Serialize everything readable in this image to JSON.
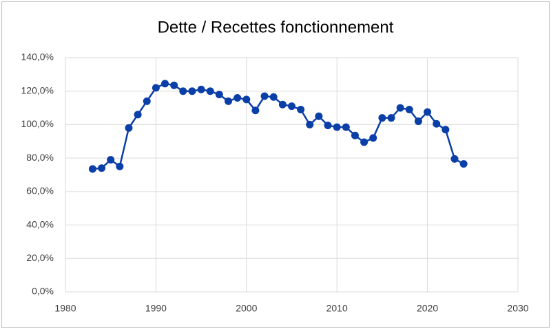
{
  "chart_data": {
    "type": "line",
    "title": "Dette / Recettes fonctionnement",
    "x": [
      1983,
      1984,
      1985,
      1986,
      1987,
      1988,
      1989,
      1990,
      1991,
      1992,
      1993,
      1994,
      1995,
      1996,
      1997,
      1998,
      1999,
      2000,
      2001,
      2002,
      2003,
      2004,
      2005,
      2006,
      2007,
      2008,
      2009,
      2010,
      2011,
      2012,
      2013,
      2014,
      2015,
      2016,
      2017,
      2018,
      2019,
      2020,
      2021,
      2022,
      2023,
      2024
    ],
    "values": [
      73.5,
      74,
      79,
      75,
      98,
      106,
      114,
      122,
      124.5,
      123.5,
      120,
      120,
      121,
      120,
      118,
      114,
      116,
      115,
      108.5,
      117,
      116.5,
      112,
      111,
      109,
      100,
      105,
      99.5,
      98.5,
      98.5,
      93.5,
      89.5,
      92,
      104,
      104,
      110,
      109,
      102,
      107.5,
      100.5,
      97,
      79.5,
      76.5
    ],
    "color": "#0a3fa8",
    "xlim": [
      1980,
      2030
    ],
    "xticks": [
      1980,
      1990,
      2000,
      2010,
      2020,
      2030
    ],
    "ylim": [
      0,
      140
    ],
    "yticks": [
      {
        "value": 0,
        "label": "0,0%"
      },
      {
        "value": 20,
        "label": "20,0%"
      },
      {
        "value": 40,
        "label": "40,0%"
      },
      {
        "value": 60,
        "label": "60,0%"
      },
      {
        "value": 80,
        "label": "80,0%"
      },
      {
        "value": 100,
        "label": "100,0%"
      },
      {
        "value": 120,
        "label": "120,0%"
      },
      {
        "value": 140,
        "label": "140,0%"
      }
    ],
    "grid": true
  }
}
